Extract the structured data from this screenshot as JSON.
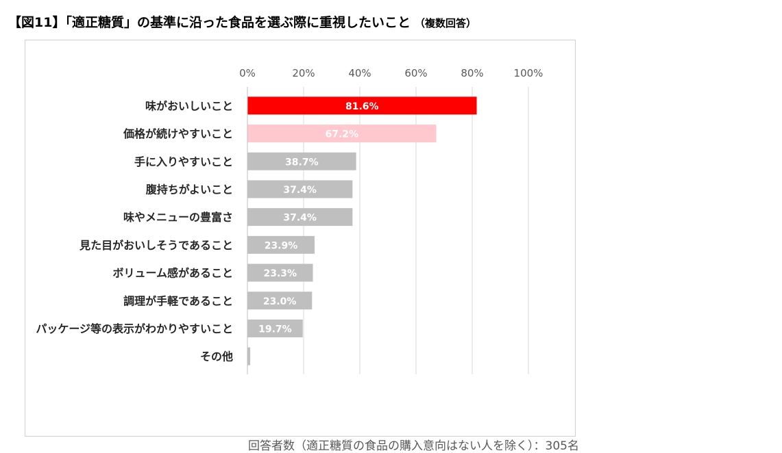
{
  "title": {
    "main": "【図11】「適正糖質」の基準に沿った食品を選ぶ際に重視したいこと",
    "sub": "（複数回答）"
  },
  "note": "回答者数（適正糖質の食品の購入意向はない人を除く）：305名",
  "colors": {
    "highlight": "#ff0000",
    "second": "#ffc7ce",
    "other": "#bfbfbf",
    "grid": "#d9d9d9"
  },
  "chart_data": {
    "type": "bar",
    "orientation": "horizontal",
    "categories": [
      "味がおいしいこと",
      "価格が続けやすいこと",
      "手に入りやすいこと",
      "腹持ちがよいこと",
      "味やメニューの豊富さ",
      "見た目がおいしそうであること",
      "ボリューム感があること",
      "調理が手軽であること",
      "パッケージ等の表示がわかりやすいこと",
      "その他"
    ],
    "values": [
      81.6,
      67.2,
      38.7,
      37.4,
      37.4,
      23.9,
      23.3,
      23.0,
      19.7,
      1.0
    ],
    "data_labels": [
      "81.6%",
      "67.2%",
      "38.7%",
      "37.4%",
      "37.4%",
      "23.9%",
      "23.3%",
      "23.0%",
      "19.7%",
      ""
    ],
    "x_ticks": [
      "0%",
      "20%",
      "40%",
      "60%",
      "80%",
      "100%"
    ],
    "xlim": [
      0,
      100
    ],
    "grid": true,
    "axis_position": "top",
    "legend": "none"
  }
}
